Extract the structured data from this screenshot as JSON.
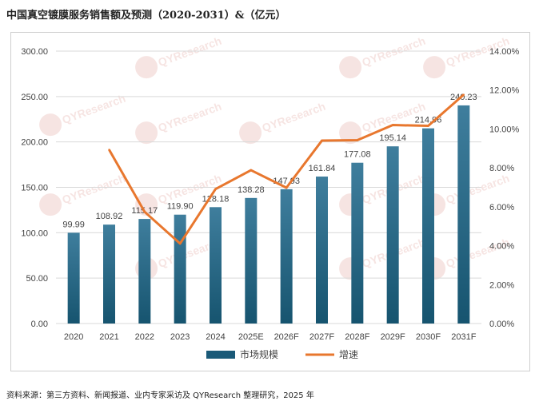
{
  "title": "中国真空镀膜服务销售额及预测（2020-2031）&（亿元）",
  "source": "资料来源：第三方资料、新闻报道、业内专家采访及 QYResearch 整理研究，2025 年",
  "watermark": "QYResearch",
  "colors": {
    "bar_top": "#3d7a99",
    "bar_bottom": "#1a5a78",
    "line": "#e8772e",
    "grid": "#d9d9d9",
    "text": "#444444"
  },
  "chart_data": {
    "type": "bar",
    "categories": [
      "2020",
      "2021",
      "2022",
      "2023",
      "2024",
      "2025E",
      "2026F",
      "2027F",
      "2028F",
      "2029F",
      "2030F",
      "2031F"
    ],
    "series": [
      {
        "name": "市场规模",
        "type": "bar",
        "axis": "left",
        "values": [
          99.99,
          108.92,
          115.17,
          119.9,
          128.18,
          138.28,
          147.93,
          161.84,
          177.08,
          195.14,
          214.96,
          240.23
        ]
      },
      {
        "name": "增速",
        "type": "line",
        "axis": "right",
        "values": [
          null,
          8.93,
          5.74,
          4.11,
          6.91,
          7.88,
          6.98,
          9.4,
          9.42,
          10.2,
          10.16,
          11.76
        ]
      }
    ],
    "data_labels": [
      "99.99",
      "108.92",
      "115.17",
      "119.90",
      "128.18",
      "138.28",
      "147.93",
      "161.84",
      "177.08",
      "195.14",
      "214.96",
      "240.23"
    ],
    "yleft": {
      "min": 0,
      "max": 300,
      "step": 50,
      "tick_labels": [
        "0.00",
        "50.00",
        "100.00",
        "150.00",
        "200.00",
        "250.00",
        "300.00"
      ]
    },
    "yright": {
      "min": 0,
      "max": 14,
      "step": 2,
      "unit": "%",
      "tick_labels": [
        "0.00%",
        "2.00%",
        "4.00%",
        "6.00%",
        "8.00%",
        "10.00%",
        "12.00%",
        "14.00%"
      ]
    },
    "grid": true,
    "legend_position": "bottom-center"
  }
}
